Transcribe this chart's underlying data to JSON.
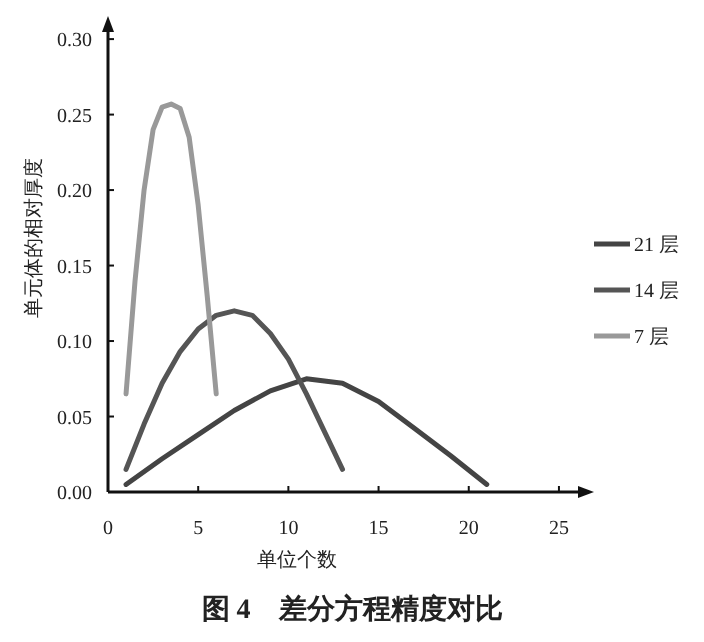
{
  "chart_data": {
    "type": "line",
    "title": "图 4　差分方程精度对比",
    "xlabel": "单位个数",
    "ylabel": "单元体的相对厚度",
    "xlim": [
      0,
      26.5
    ],
    "ylim": [
      0,
      0.31
    ],
    "xticks": [
      0,
      5,
      10,
      15,
      20,
      25
    ],
    "yticks": [
      {
        "value": 0,
        "label": "0.00"
      },
      {
        "value": 0.05,
        "label": "0.05"
      },
      {
        "value": 0.1,
        "label": "0.10"
      },
      {
        "value": 0.15,
        "label": "0.15"
      },
      {
        "value": 0.2,
        "label": "0.20"
      },
      {
        "value": 0.25,
        "label": "0.25"
      },
      {
        "value": 0.3,
        "label": "0.30"
      }
    ],
    "grid": false,
    "legend": "right",
    "marker": "none",
    "line_style": "solid",
    "series": [
      {
        "name": "21 层",
        "color": "#444444",
        "x": [
          1,
          3,
          5,
          7,
          9,
          11,
          13,
          15,
          17,
          19,
          21
        ],
        "values": [
          0.005,
          0.022,
          0.038,
          0.054,
          0.067,
          0.075,
          0.072,
          0.06,
          0.042,
          0.024,
          0.005
        ]
      },
      {
        "name": "14 层",
        "color": "#555555",
        "x": [
          1,
          2,
          3,
          4,
          5,
          6,
          7,
          8,
          9,
          10,
          11,
          12,
          13
        ],
        "values": [
          0.015,
          0.045,
          0.072,
          0.093,
          0.108,
          0.117,
          0.12,
          0.117,
          0.105,
          0.088,
          0.065,
          0.04,
          0.015
        ]
      },
      {
        "name": "7 层",
        "color": "#999999",
        "x": [
          1,
          1.5,
          2,
          2.5,
          3,
          3.5,
          4,
          4.5,
          5,
          5.5,
          6
        ],
        "values": [
          0.065,
          0.14,
          0.2,
          0.24,
          0.255,
          0.257,
          0.254,
          0.235,
          0.19,
          0.13,
          0.065
        ]
      }
    ]
  }
}
